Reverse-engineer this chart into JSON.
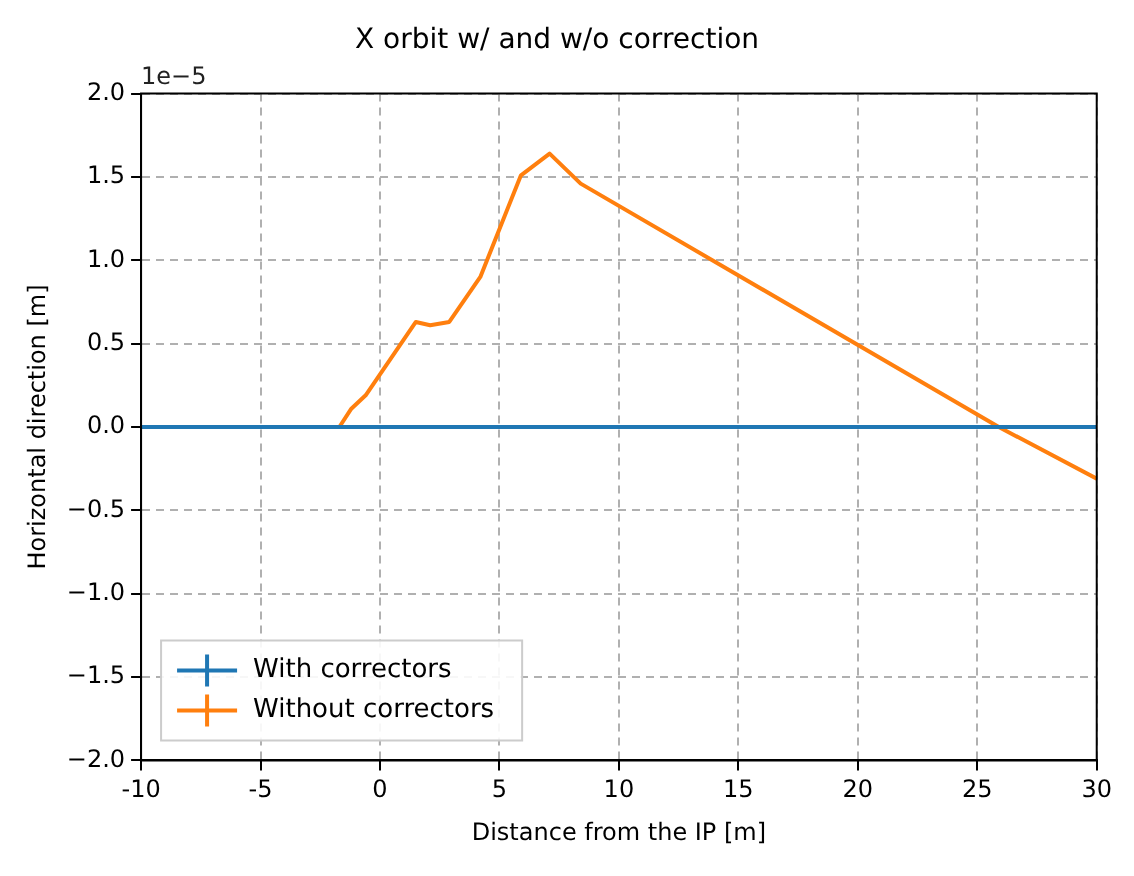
{
  "chart_data": {
    "type": "line",
    "title": "X orbit w/ and w/o correction",
    "xlabel": "Distance from the IP [m]",
    "ylabel": "Horizontal direction [m]",
    "annotations": [
      "1e−5"
    ],
    "series": [
      {
        "name": "With correctors",
        "color": "#1f77b4",
        "x": [
          -10,
          30
        ],
        "values": [
          0,
          0
        ]
      },
      {
        "name": "Without correctors",
        "color": "#ff7f0e",
        "x": [
          -10,
          -1.7,
          -1.2,
          -0.6,
          1.5,
          2.1,
          2.9,
          4.2,
          5.9,
          7.1,
          8.4,
          25.9,
          30
        ],
        "values": [
          0,
          0,
          0.11,
          0.19,
          0.63,
          0.61,
          0.63,
          0.9,
          1.51,
          1.64,
          1.46,
          0,
          -0.31
        ]
      }
    ],
    "xlim": [
      -10,
      30
    ],
    "xticks": [
      -10,
      -5,
      0,
      5,
      10,
      15,
      20,
      25,
      30
    ],
    "ylim": [
      -2,
      2
    ],
    "yticks": [
      {
        "value": -2,
        "label": "−2.0"
      },
      {
        "value": -1.5,
        "label": "−1.5"
      },
      {
        "value": -1,
        "label": "−1.0"
      },
      {
        "value": -0.5,
        "label": "−0.5"
      },
      {
        "value": 0,
        "label": "0.0"
      },
      {
        "value": 0.5,
        "label": "0.5"
      },
      {
        "value": 1,
        "label": "1.0"
      },
      {
        "value": 1.5,
        "label": "1.5"
      },
      {
        "value": 2,
        "label": "2.0"
      }
    ],
    "grid": true,
    "legend": "bottom left"
  }
}
